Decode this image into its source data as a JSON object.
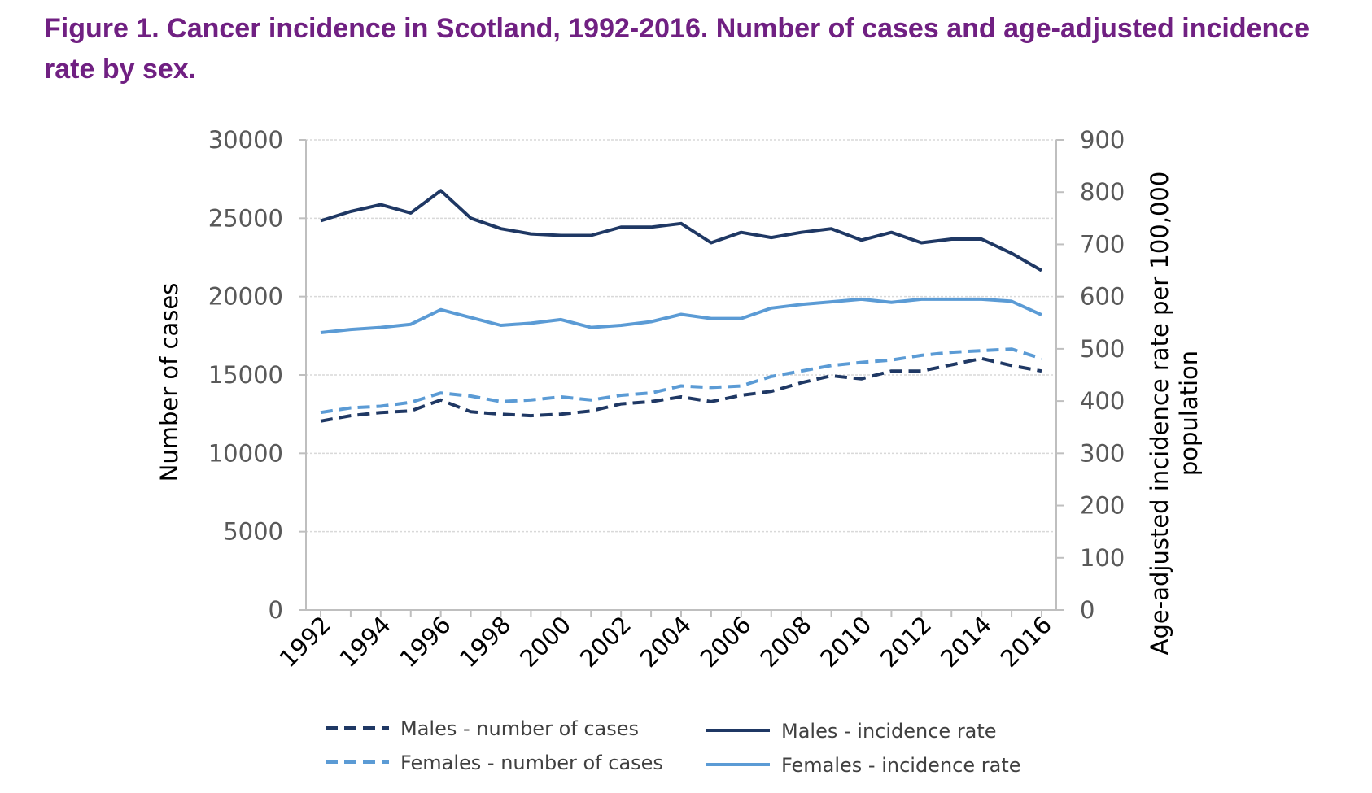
{
  "figure": {
    "title": "Figure 1. Cancer incidence in Scotland, 1992-2016. Number of cases and age-adjusted incidence rate by sex."
  },
  "chart_data": {
    "type": "line",
    "x": [
      1992,
      1993,
      1994,
      1995,
      1996,
      1997,
      1998,
      1999,
      2000,
      2001,
      2002,
      2003,
      2004,
      2005,
      2006,
      2007,
      2008,
      2009,
      2010,
      2011,
      2012,
      2013,
      2014,
      2015,
      2016
    ],
    "x_tick_labels": [
      "1992",
      "1994",
      "1996",
      "1998",
      "2000",
      "2002",
      "2004",
      "2006",
      "2008",
      "2010",
      "2012",
      "2014",
      "2016"
    ],
    "ylabel_left": "Number of cases",
    "ylabel_right_line1": "Age-adjusted incidence rate per 100,000",
    "ylabel_right_line2": "population",
    "ylim_left": [
      0,
      30000
    ],
    "yticks_left": [
      "0",
      "5000",
      "10000",
      "15000",
      "20000",
      "25000",
      "30000"
    ],
    "ylim_right": [
      0,
      900
    ],
    "yticks_right": [
      "0",
      "100",
      "200",
      "300",
      "400",
      "500",
      "600",
      "700",
      "800",
      "900"
    ],
    "grid": "horizontal",
    "legend_position": "bottom",
    "series": [
      {
        "name": "Males - number of cases",
        "axis": "left",
        "style": "dashed",
        "color": "#1f3864",
        "values": [
          12050,
          12400,
          12600,
          12700,
          13400,
          12650,
          12500,
          12400,
          12500,
          12700,
          13150,
          13300,
          13600,
          13300,
          13700,
          13950,
          14500,
          14950,
          14750,
          15250,
          15250,
          15650,
          16050,
          15600,
          15250
        ]
      },
      {
        "name": "Females - number of cases",
        "axis": "left",
        "style": "dashed",
        "color": "#5b9bd5",
        "values": [
          12600,
          12900,
          13000,
          13250,
          13850,
          13650,
          13300,
          13400,
          13600,
          13400,
          13700,
          13850,
          14300,
          14200,
          14300,
          14900,
          15250,
          15600,
          15800,
          15950,
          16250,
          16450,
          16550,
          16650,
          16050
        ]
      },
      {
        "name": "Males - incidence rate",
        "axis": "right",
        "style": "solid",
        "color": "#1f3864",
        "values": [
          745,
          763,
          776,
          760,
          803,
          750,
          730,
          720,
          717,
          717,
          733,
          733,
          740,
          703,
          723,
          713,
          723,
          730,
          708,
          723,
          703,
          710,
          710,
          683,
          650
        ]
      },
      {
        "name": "Females - incidence rate",
        "axis": "right",
        "style": "solid",
        "color": "#5b9bd5",
        "values": [
          531,
          537,
          541,
          547,
          575,
          560,
          545,
          549,
          556,
          541,
          545,
          552,
          566,
          558,
          558,
          578,
          585,
          590,
          595,
          589,
          595,
          595,
          595,
          591,
          565
        ]
      }
    ]
  }
}
